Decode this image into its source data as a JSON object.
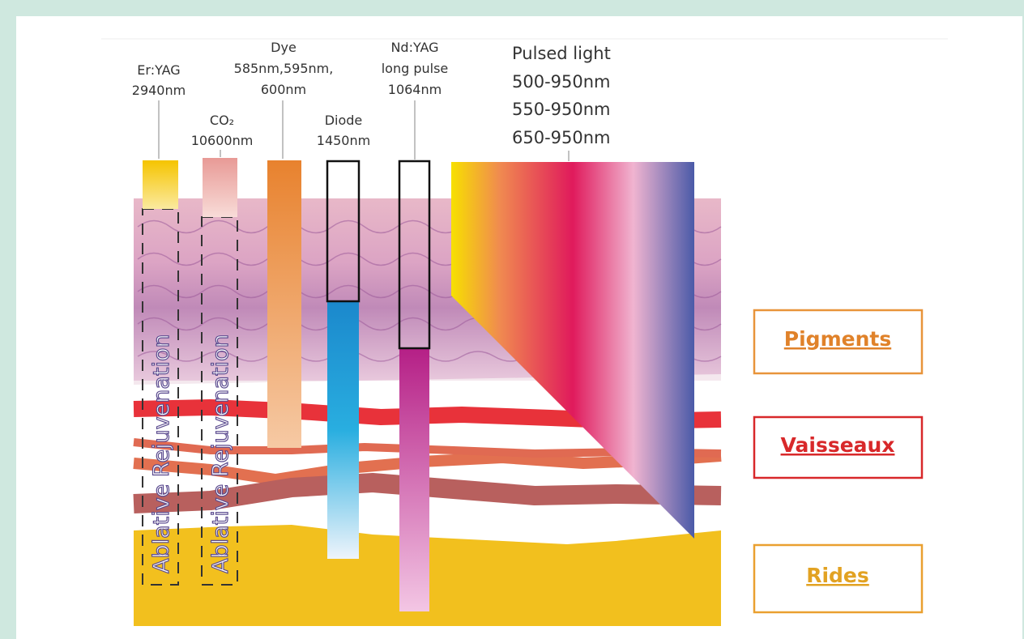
{
  "lasers": [
    {
      "lines": [
        "Er:YAG",
        "2940nm"
      ]
    },
    {
      "lines": [
        "CO₂",
        "10600nm"
      ]
    },
    {
      "lines": [
        "Dye",
        "585nm,595nm,",
        "600nm"
      ]
    },
    {
      "lines": [
        "Diode",
        "1450nm"
      ]
    },
    {
      "lines": [
        "Nd:YAG",
        "long pulse",
        "1064nm"
      ]
    }
  ],
  "pulsed_light": {
    "lines": [
      "Pulsed light",
      "500-950nm",
      "550-950nm",
      "650-950nm"
    ]
  },
  "ablative_labels": [
    "Ablative Rejuvenation",
    "Ablative Rejuvenation"
  ],
  "targets": [
    "Pigments",
    "Vaisseaux",
    "Rides"
  ]
}
